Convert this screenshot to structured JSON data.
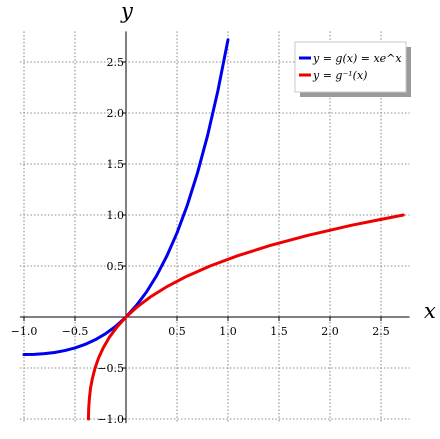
{
  "chart_data": {
    "type": "line",
    "title": "",
    "xlabel": "x",
    "ylabel": "y",
    "xlim": [
      -1.04,
      2.78
    ],
    "ylim": [
      -1.04,
      2.8
    ],
    "grid": true,
    "legend_position": "top-right",
    "x_ticks": [
      -1.0,
      -0.5,
      0.5,
      1.0,
      1.5,
      2.0,
      2.5
    ],
    "x_tick_labels": [
      "−1.0",
      "−0.5",
      "0.5",
      "1.0",
      "1.5",
      "2.0",
      "2.5"
    ],
    "y_ticks": [
      -1.0,
      -0.5,
      0.5,
      1.0,
      1.5,
      2.0,
      2.5
    ],
    "y_tick_labels": [
      "−1.0",
      "−0.5",
      "0.5",
      "1.0",
      "1.5",
      "2.0",
      "2.5"
    ],
    "series": [
      {
        "name": "y = g(x) = xe^x",
        "color": "#0000ee",
        "x": [
          -1.0,
          -0.9,
          -0.8,
          -0.7,
          -0.6,
          -0.5,
          -0.4,
          -0.3,
          -0.2,
          -0.1,
          0.0,
          0.1,
          0.2,
          0.3,
          0.4,
          0.5,
          0.6,
          0.7,
          0.8,
          0.9,
          1.0
        ],
        "y": [
          -0.368,
          -0.366,
          -0.359,
          -0.348,
          -0.329,
          -0.303,
          -0.268,
          -0.222,
          -0.164,
          -0.09,
          0.0,
          0.111,
          0.244,
          0.405,
          0.597,
          0.824,
          1.093,
          1.41,
          1.78,
          2.214,
          2.718
        ]
      },
      {
        "name": "y = g⁻¹(x)",
        "color": "#ee0000",
        "x": [
          -0.368,
          -0.366,
          -0.359,
          -0.348,
          -0.329,
          -0.303,
          -0.268,
          -0.222,
          -0.164,
          -0.09,
          0.0,
          0.111,
          0.244,
          0.405,
          0.597,
          0.824,
          1.093,
          1.41,
          1.78,
          2.214,
          2.718
        ],
        "y": [
          -1.0,
          -0.9,
          -0.8,
          -0.7,
          -0.6,
          -0.5,
          -0.4,
          -0.3,
          -0.2,
          -0.1,
          0.0,
          0.1,
          0.2,
          0.3,
          0.4,
          0.5,
          0.6,
          0.7,
          0.8,
          0.9,
          1.0
        ]
      }
    ]
  }
}
